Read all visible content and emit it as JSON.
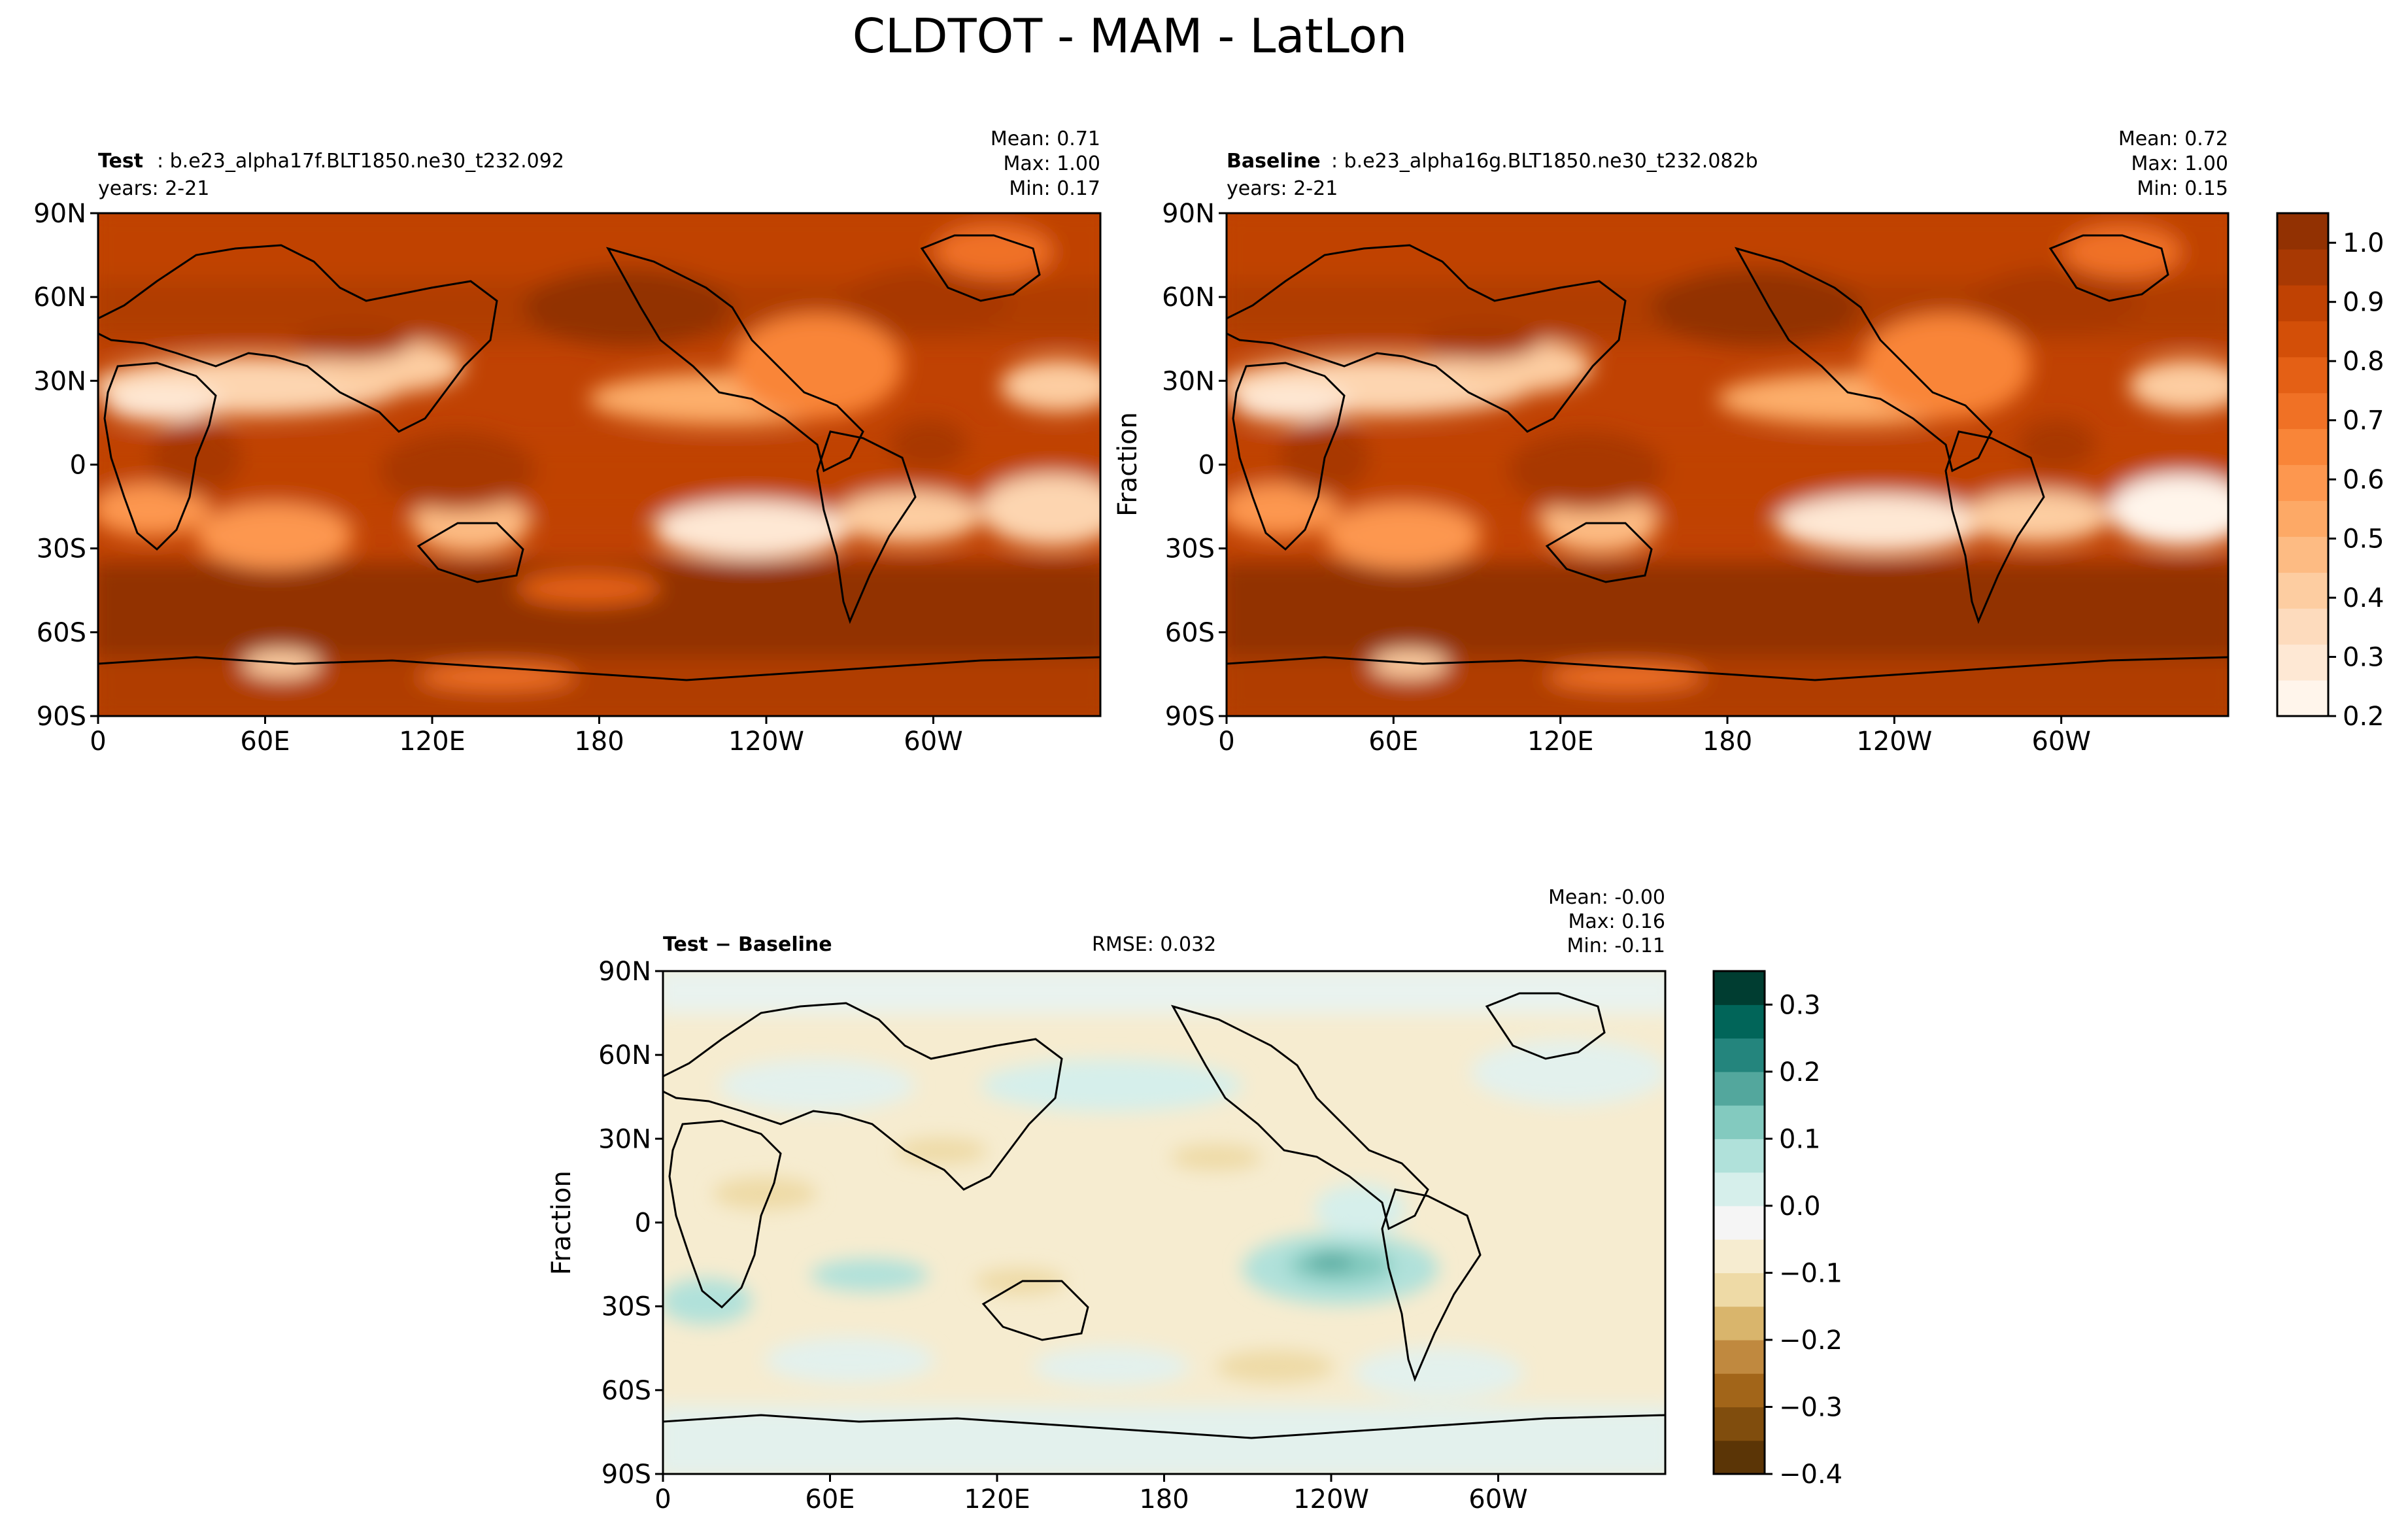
{
  "figure_title": "CLDTOT - MAM - LatLon",
  "colors": {
    "oranges": [
      "#fff5eb",
      "#fee8d4",
      "#fddbbd",
      "#fdcda1",
      "#fdbb83",
      "#fda966",
      "#fd974f",
      "#f98538",
      "#f07125",
      "#e46015",
      "#d34f08",
      "#c04203",
      "#a83903",
      "#923102"
    ],
    "brbg": [
      "#5b3506",
      "#804d0d",
      "#a26519",
      "#c0893f",
      "#d9b56c",
      "#eedaa6",
      "#f6ecd0",
      "#f5f5f5",
      "#d6efeb",
      "#b0e1da",
      "#83cabf",
      "#53a79d",
      "#24857d",
      "#016559",
      "#003d31"
    ]
  },
  "panels": {
    "test": {
      "label": "Test",
      "case": ": b.e23_alpha17f.BLT1850.ne30_t232.092",
      "years": "years: 2-21",
      "mean": "Mean:  0.71",
      "max": "Max:  1.00",
      "min": "Min:  0.17"
    },
    "baseline": {
      "label": "Baseline",
      "case": ": b.e23_alpha16g.BLT1850.ne30_t232.082b",
      "years": "years: 2-21",
      "mean": "Mean:  0.72",
      "max": "Max:  1.00",
      "min": "Min:  0.15",
      "ylabel": "Fraction"
    },
    "diff": {
      "label": "Test − Baseline",
      "rmse": "RMSE: 0.032",
      "mean": "Mean: -0.00",
      "max": "Max:  0.16",
      "min": "Min: -0.11",
      "ylabel": "Fraction"
    }
  },
  "chart_data": [
    {
      "type": "heatmap",
      "panel": "Test",
      "subtitle": "b.e23_alpha17f.BLT1850.ne30_t232.092",
      "stats": {
        "mean": 0.71,
        "max": 1.0,
        "min": 0.17
      },
      "x_ticks": [
        "0",
        "60E",
        "120E",
        "180",
        "120W",
        "60W"
      ],
      "y_ticks": [
        "90N",
        "60N",
        "30N",
        "0",
        "30S",
        "60S",
        "90S"
      ],
      "xlim": [
        0,
        360
      ],
      "ylim": [
        -90,
        90
      ],
      "colorscale": "oranges",
      "clim": [
        0.2,
        1.05
      ]
    },
    {
      "type": "heatmap",
      "panel": "Baseline",
      "subtitle": "b.e23_alpha16g.BLT1850.ne30_t232.082b",
      "stats": {
        "mean": 0.72,
        "max": 1.0,
        "min": 0.15
      },
      "x_ticks": [
        "0",
        "60E",
        "120E",
        "180",
        "120W",
        "60W"
      ],
      "y_ticks": [
        "90N",
        "60N",
        "30N",
        "0",
        "30S",
        "60S",
        "90S"
      ],
      "xlim": [
        0,
        360
      ],
      "ylim": [
        -90,
        90
      ],
      "colorscale": "oranges",
      "clim": [
        0.2,
        1.05
      ],
      "ylabel": "Fraction",
      "colorbar_ticks": [
        "1.0",
        "0.9",
        "0.8",
        "0.7",
        "0.6",
        "0.5",
        "0.4",
        "0.3",
        "0.2"
      ]
    },
    {
      "type": "heatmap",
      "panel": "Test − Baseline",
      "stats": {
        "mean": -0.0,
        "max": 0.16,
        "min": -0.11,
        "rmse": 0.032
      },
      "x_ticks": [
        "0",
        "60E",
        "120E",
        "180",
        "120W",
        "60W"
      ],
      "y_ticks": [
        "90N",
        "60N",
        "30N",
        "0",
        "30S",
        "60S",
        "90S"
      ],
      "xlim": [
        0,
        360
      ],
      "ylim": [
        -90,
        90
      ],
      "colorscale": "brbg",
      "clim": [
        -0.4,
        0.35
      ],
      "ylabel": "Fraction",
      "colorbar_ticks": [
        "0.3",
        "0.2",
        "0.1",
        "0.0",
        "−0.1",
        "−0.2",
        "−0.3",
        "−0.4"
      ]
    }
  ]
}
